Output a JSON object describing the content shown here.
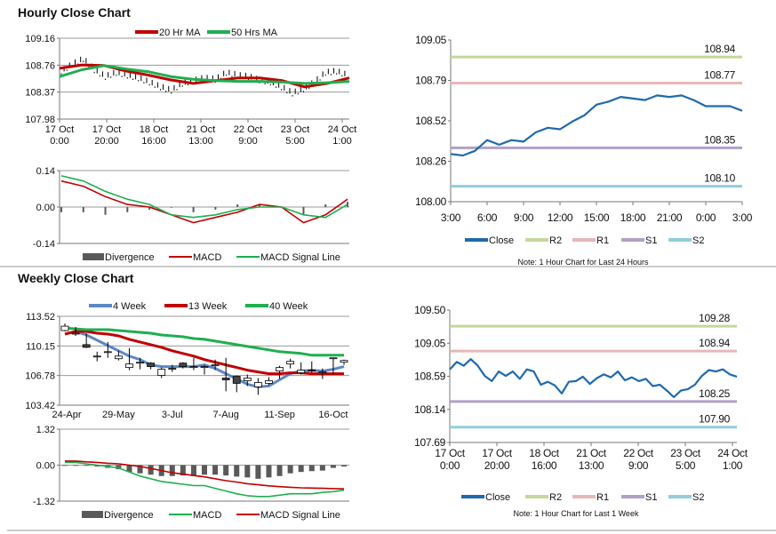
{
  "colors": {
    "ma_red": "#c00000",
    "ma_green": "#1fae50",
    "close_blue": "#1f69ad",
    "week4_blue": "#5d87c4",
    "R2": "#c4d79b",
    "R1": "#e6b8b7",
    "S1": "#b1a0c7",
    "S2": "#92cddc",
    "divergence": "#595959",
    "grid": "#9a9a9a"
  },
  "hourly": {
    "title": "Hourly Close Chart",
    "chart_data": [
      {
        "type": "line",
        "yticks": [
          "109.16",
          "108.76",
          "108.37",
          "107.98"
        ],
        "ylim": [
          107.98,
          109.16
        ],
        "grid": true,
        "legend_placement": "top",
        "xticks": [
          [
            "17 Oct",
            "0:00"
          ],
          [
            "17 Oct",
            "20:00"
          ],
          [
            "18 Oct",
            "16:00"
          ],
          [
            "21 Oct",
            "13:00"
          ],
          [
            "22 Oct",
            "9:00"
          ],
          [
            "23 Oct",
            "5:00"
          ],
          [
            "24 Oct",
            "1:00"
          ]
        ],
        "close": [
          108.68,
          108.78,
          108.86,
          108.7,
          108.6,
          108.66,
          108.62,
          108.58,
          108.52,
          108.45,
          108.4,
          108.5,
          108.54,
          108.58,
          108.56,
          108.66,
          108.62,
          108.6,
          108.55,
          108.52,
          108.45,
          108.36,
          108.42,
          108.52,
          108.66,
          108.68,
          108.62
        ],
        "series": [
          {
            "name": "20 Hr MA",
            "color": "ma_red",
            "values": [
              108.72,
              108.77,
              108.76,
              108.68,
              108.62,
              108.55,
              108.5,
              108.54,
              108.58,
              108.58,
              108.54,
              108.45,
              108.5,
              108.58
            ]
          },
          {
            "name": "50 Hrs MA",
            "color": "ma_green",
            "values": [
              108.6,
              108.7,
              108.76,
              108.71,
              108.67,
              108.6,
              108.56,
              108.54,
              108.53,
              108.53,
              108.52,
              108.5,
              108.51,
              108.53
            ]
          }
        ]
      },
      {
        "type": "line",
        "yticks": [
          "0.14",
          "0.00",
          "-0.14"
        ],
        "ylim": [
          -0.14,
          0.14
        ],
        "grid": true,
        "legend_placement": "bottom",
        "divergence_label": "Divergence",
        "divergence": [
          -0.02,
          -0.02,
          -0.03,
          -0.02,
          -0.01,
          0.0,
          -0.02,
          -0.01,
          0.01,
          0.01,
          0.0,
          -0.03,
          0.01,
          0.02
        ],
        "series": [
          {
            "name": "MACD",
            "color": "ma_red",
            "values": [
              0.1,
              0.08,
              0.04,
              0.01,
              0.0,
              -0.03,
              -0.06,
              -0.04,
              -0.02,
              0.01,
              0.0,
              -0.06,
              -0.03,
              0.03
            ]
          },
          {
            "name": "MACD Signal Line",
            "color": "ma_green",
            "values": [
              0.12,
              0.1,
              0.06,
              0.03,
              0.01,
              -0.03,
              -0.04,
              -0.03,
              -0.01,
              0.0,
              0.0,
              -0.03,
              -0.04,
              0.01
            ]
          }
        ]
      },
      {
        "type": "line",
        "yticks": [
          "109.05",
          "108.79",
          "108.52",
          "108.26",
          "108.00"
        ],
        "ylim": [
          108.0,
          109.05
        ],
        "grid": false,
        "legend_placement": "bottom",
        "xticks": [
          "3:00",
          "6:00",
          "9:00",
          "12:00",
          "15:00",
          "18:00",
          "21:00",
          "0:00",
          "3:00"
        ],
        "close_label": "Close",
        "close": [
          108.31,
          108.3,
          108.33,
          108.4,
          108.37,
          108.4,
          108.39,
          108.45,
          108.48,
          108.47,
          108.52,
          108.56,
          108.63,
          108.65,
          108.68,
          108.67,
          108.66,
          108.69,
          108.68,
          108.69,
          108.66,
          108.62,
          108.62,
          108.62,
          108.59
        ],
        "pivots": [
          {
            "name": "R2",
            "value": "108.94",
            "color": "R2"
          },
          {
            "name": "R1",
            "value": "108.77",
            "color": "R1"
          },
          {
            "name": "S1",
            "value": "108.35",
            "color": "S1"
          },
          {
            "name": "S2",
            "value": "108.10",
            "color": "S2"
          }
        ],
        "note": "Note: 1 Hour Chart for Last 24 Hours"
      }
    ]
  },
  "weekly": {
    "title": "Weekly Close Chart",
    "chart_data": [
      {
        "type": "candlestick",
        "yticks": [
          "113.52",
          "110.15",
          "106.78",
          "103.42"
        ],
        "ylim": [
          103.42,
          113.52
        ],
        "grid": true,
        "legend_placement": "top",
        "xticks": [
          {
            "label": "24-Apr",
            "index": 0
          },
          {
            "label": "29-May",
            "index": 5
          },
          {
            "label": "3-Jul",
            "index": 10
          },
          {
            "label": "7-Aug",
            "index": 15
          },
          {
            "label": "11-Sep",
            "index": 20
          },
          {
            "label": "16-Oct",
            "index": 25
          }
        ],
        "ohlc": [
          [
            111.9,
            112.7,
            111.8,
            112.4
          ],
          [
            111.5,
            112.3,
            111.3,
            111.6
          ],
          [
            110.3,
            111.6,
            109.9,
            110.0
          ],
          [
            109.0,
            109.5,
            108.4,
            109.0
          ],
          [
            109.5,
            110.6,
            108.8,
            109.5
          ],
          [
            108.7,
            109.6,
            108.5,
            109.0
          ],
          [
            107.7,
            109.9,
            107.4,
            108.1
          ],
          [
            108.3,
            108.8,
            107.5,
            108.3
          ],
          [
            108.2,
            108.3,
            107.5,
            107.8
          ],
          [
            106.8,
            107.7,
            106.5,
            107.5
          ],
          [
            107.6,
            108.0,
            107.2,
            107.6
          ],
          [
            108.2,
            108.3,
            107.6,
            107.8
          ],
          [
            107.8,
            108.8,
            107.4,
            107.8
          ],
          [
            107.8,
            108.0,
            106.9,
            107.8
          ],
          [
            108.0,
            108.6,
            107.4,
            108.0
          ],
          [
            106.5,
            108.8,
            105.0,
            106.3
          ],
          [
            106.7,
            106.8,
            104.9,
            105.9
          ],
          [
            106.2,
            106.9,
            105.6,
            106.5
          ],
          [
            105.5,
            106.5,
            104.6,
            106.0
          ],
          [
            105.9,
            106.6,
            105.7,
            106.2
          ],
          [
            107.3,
            107.9,
            106.4,
            107.7
          ],
          [
            108.1,
            108.7,
            107.6,
            108.4
          ],
          [
            107.1,
            108.3,
            106.9,
            107.4
          ],
          [
            107.4,
            108.4,
            107.1,
            107.3
          ],
          [
            107.2,
            107.6,
            106.4,
            107.2
          ],
          [
            108.8,
            108.8,
            106.9,
            108.8
          ],
          [
            108.3,
            108.6,
            108.0,
            108.5
          ]
        ],
        "series": [
          {
            "name": "4 Week",
            "color": "week4_blue",
            "values": [
              null,
              111.8,
              111.4,
              110.8,
              110.2,
              109.6,
              109.0,
              108.6,
              108.0,
              107.8,
              107.8,
              107.8,
              107.8,
              108.0,
              107.6,
              107.0,
              106.4,
              105.8,
              105.5,
              105.6,
              106.3,
              107.0,
              107.3,
              107.4,
              107.3,
              107.5,
              107.8
            ]
          },
          {
            "name": "13 Week",
            "color": "ma_red",
            "values": [
              111.5,
              111.8,
              111.8,
              111.6,
              111.5,
              111.3,
              110.9,
              110.6,
              110.3,
              110.0,
              109.6,
              109.3,
              109.0,
              108.6,
              108.3,
              108.0,
              107.7,
              107.4,
              107.2,
              107.0,
              107.0,
              107.1,
              107.1,
              107.0,
              107.0,
              107.0,
              107.0
            ]
          },
          {
            "name": "40 Week",
            "color": "ma_green",
            "values": [
              112.2,
              112.1,
              112.0,
              112.0,
              112.0,
              111.9,
              111.8,
              111.7,
              111.6,
              111.4,
              111.3,
              111.2,
              111.0,
              110.9,
              110.7,
              110.5,
              110.3,
              110.1,
              109.9,
              109.7,
              109.5,
              109.4,
              109.3,
              109.1,
              109.1,
              109.1,
              109.1
            ]
          }
        ]
      },
      {
        "type": "line",
        "yticks": [
          "1.32",
          "0.00",
          "-1.32"
        ],
        "ylim": [
          -1.32,
          1.32
        ],
        "grid": true,
        "legend_placement": "bottom",
        "divergence_label": "Divergence",
        "divergence": [
          0,
          0,
          -0.02,
          -0.05,
          -0.1,
          -0.15,
          -0.25,
          -0.3,
          -0.35,
          -0.4,
          -0.4,
          -0.38,
          -0.4,
          -0.35,
          -0.35,
          -0.38,
          -0.42,
          -0.45,
          -0.5,
          -0.45,
          -0.4,
          -0.3,
          -0.25,
          -0.22,
          -0.2,
          -0.1,
          -0.05
        ],
        "series": [
          {
            "name": "MACD",
            "color": "ma_green",
            "values": [
              0.1,
              0.1,
              0.05,
              0.0,
              -0.05,
              -0.1,
              -0.25,
              -0.4,
              -0.5,
              -0.6,
              -0.65,
              -0.7,
              -0.75,
              -0.75,
              -0.85,
              -0.95,
              -1.05,
              -1.12,
              -1.15,
              -1.15,
              -1.1,
              -1.05,
              -1.05,
              -1.05,
              -1.0,
              -0.97,
              -0.92
            ]
          },
          {
            "name": "MACD Signal Line",
            "color": "ma_red",
            "values": [
              0.15,
              0.15,
              0.12,
              0.1,
              0.07,
              0.05,
              0.0,
              -0.05,
              -0.12,
              -0.2,
              -0.28,
              -0.33,
              -0.38,
              -0.43,
              -0.5,
              -0.57,
              -0.62,
              -0.68,
              -0.72,
              -0.76,
              -0.79,
              -0.81,
              -0.83,
              -0.84,
              -0.85,
              -0.86,
              -0.87
            ]
          }
        ]
      },
      {
        "type": "line",
        "yticks": [
          "109.50",
          "109.05",
          "108.59",
          "108.14",
          "107.69"
        ],
        "ylim": [
          107.69,
          109.5
        ],
        "grid": false,
        "legend_placement": "bottom",
        "xticks": [
          [
            "17 Oct",
            "0:00"
          ],
          [
            "17 Oct",
            "20:00"
          ],
          [
            "18 Oct",
            "16:00"
          ],
          [
            "21 Oct",
            "13:00"
          ],
          [
            "22 Oct",
            "9:00"
          ],
          [
            "23 Oct",
            "5:00"
          ],
          [
            "24 Oct",
            "1:00"
          ]
        ],
        "close_label": "Close",
        "close": [
          108.69,
          108.79,
          108.74,
          108.83,
          108.74,
          108.6,
          108.53,
          108.66,
          108.6,
          108.66,
          108.56,
          108.69,
          108.66,
          108.48,
          108.52,
          108.47,
          108.36,
          108.52,
          108.53,
          108.59,
          108.49,
          108.57,
          108.62,
          108.58,
          108.66,
          108.54,
          108.58,
          108.53,
          108.56,
          108.46,
          108.48,
          108.4,
          108.31,
          108.4,
          108.42,
          108.48,
          108.6,
          108.68,
          108.66,
          108.69,
          108.62,
          108.59
        ],
        "pivots": [
          {
            "name": "R2",
            "value": "109.28",
            "color": "R2"
          },
          {
            "name": "R1",
            "value": "108.94",
            "color": "R1"
          },
          {
            "name": "S1",
            "value": "108.25",
            "color": "S1"
          },
          {
            "name": "S2",
            "value": "107.90",
            "color": "S2"
          }
        ],
        "note": "Note: 1 Hour Chart for Last 1 Week"
      }
    ]
  }
}
